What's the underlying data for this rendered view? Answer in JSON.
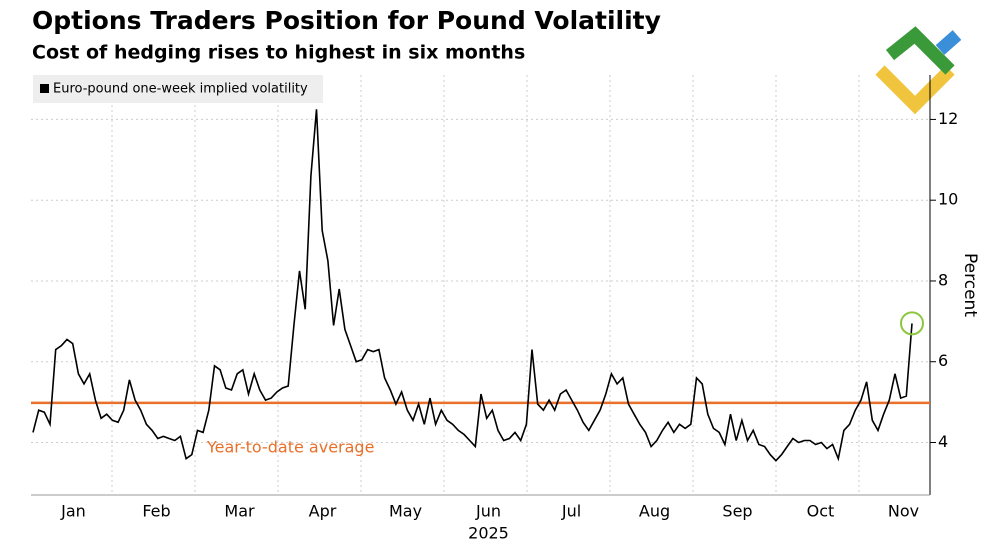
{
  "chart_data": {
    "type": "line",
    "title": "Options Traders Position for Pound Volatility",
    "subtitle": "Cost of hedging rises to highest in six months",
    "y_label": "Percent",
    "month_labels": [
      "Jan",
      "Feb",
      "Mar",
      "Apr",
      "May",
      "Jun",
      "Jul",
      "Aug",
      "Sep",
      "Oct",
      "Nov"
    ],
    "year_label": "2025",
    "series": [
      {
        "name": "Euro-pound one-week implied volatility",
        "color": "#000000",
        "values": [
          4.25,
          4.8,
          4.75,
          4.45,
          6.3,
          6.4,
          6.55,
          6.45,
          5.7,
          5.45,
          5.7,
          5.05,
          4.6,
          4.7,
          4.55,
          4.5,
          4.8,
          5.55,
          5.05,
          4.8,
          4.45,
          4.3,
          4.1,
          4.15,
          4.1,
          4.05,
          4.15,
          3.6,
          3.7,
          4.3,
          4.25,
          4.8,
          5.9,
          5.8,
          5.35,
          5.3,
          5.7,
          5.8,
          5.2,
          5.7,
          5.3,
          5.05,
          5.1,
          5.25,
          5.35,
          5.4,
          6.9,
          8.25,
          7.3,
          10.6,
          12.25,
          9.25,
          8.5,
          6.9,
          7.8,
          6.8,
          6.4,
          6.0,
          6.05,
          6.3,
          6.25,
          6.3,
          5.6,
          5.3,
          4.95,
          5.25,
          4.8,
          4.55,
          4.95,
          4.45,
          5.1,
          4.45,
          4.8,
          4.55,
          4.45,
          4.3,
          4.2,
          4.05,
          3.9,
          5.2,
          4.6,
          4.8,
          4.3,
          4.05,
          4.1,
          4.25,
          4.05,
          4.45,
          6.3,
          4.95,
          4.8,
          5.05,
          4.8,
          5.2,
          5.3,
          5.05,
          4.8,
          4.5,
          4.3,
          4.55,
          4.8,
          5.2,
          5.7,
          5.45,
          5.6,
          4.95,
          4.7,
          4.45,
          4.25,
          3.9,
          4.05,
          4.3,
          4.5,
          4.25,
          4.45,
          4.35,
          4.45,
          5.6,
          5.45,
          4.7,
          4.35,
          4.25,
          3.95,
          4.7,
          4.05,
          4.55,
          4.05,
          4.3,
          3.95,
          3.9,
          3.7,
          3.55,
          3.7,
          3.9,
          4.1,
          4.0,
          4.05,
          4.05,
          3.95,
          4.0,
          3.85,
          3.95,
          3.6,
          4.3,
          4.45,
          4.8,
          5.05,
          5.5,
          4.55,
          4.3,
          4.7,
          5.05,
          5.7,
          5.1,
          5.15,
          6.95
        ]
      }
    ],
    "average": {
      "value": 4.98,
      "label": "Year-to-date average",
      "color": "#e8702a"
    },
    "highlight_last": true,
    "highlight_color": "#8cc63f",
    "ylim": [
      2.7,
      13.1
    ],
    "yticks": [
      4,
      6,
      8,
      10,
      12
    ],
    "grid": true,
    "legend": "top-left"
  }
}
